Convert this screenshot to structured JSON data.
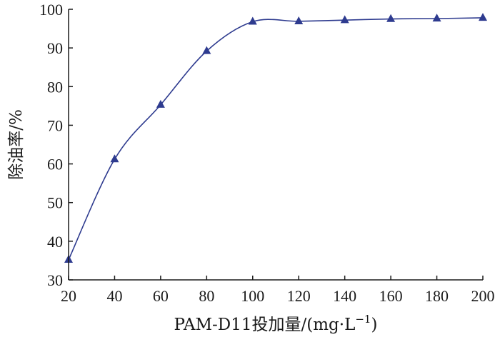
{
  "chart_data": {
    "type": "line",
    "xlabel": "PAM-D11投加量/(mg·L",
    "xlabel_sup": "−1",
    "xlabel_end": ")",
    "ylabel": "除油率/%",
    "x": [
      20,
      40,
      60,
      80,
      100,
      120,
      140,
      160,
      180,
      200
    ],
    "series": [
      {
        "values": [
          35.2,
          61.2,
          75.3,
          89.2,
          96.8,
          96.9,
          97.2,
          97.5,
          97.6,
          97.8
        ],
        "color": "#2e3b8f",
        "marker": "triangle"
      }
    ],
    "xlim": [
      20,
      200
    ],
    "ylim": [
      30,
      100
    ],
    "xticks": [
      20,
      40,
      60,
      80,
      100,
      120,
      140,
      160,
      180,
      200
    ],
    "yticks": [
      30,
      40,
      50,
      60,
      70,
      80,
      90,
      100
    ],
    "grid": false,
    "smooth": true
  }
}
